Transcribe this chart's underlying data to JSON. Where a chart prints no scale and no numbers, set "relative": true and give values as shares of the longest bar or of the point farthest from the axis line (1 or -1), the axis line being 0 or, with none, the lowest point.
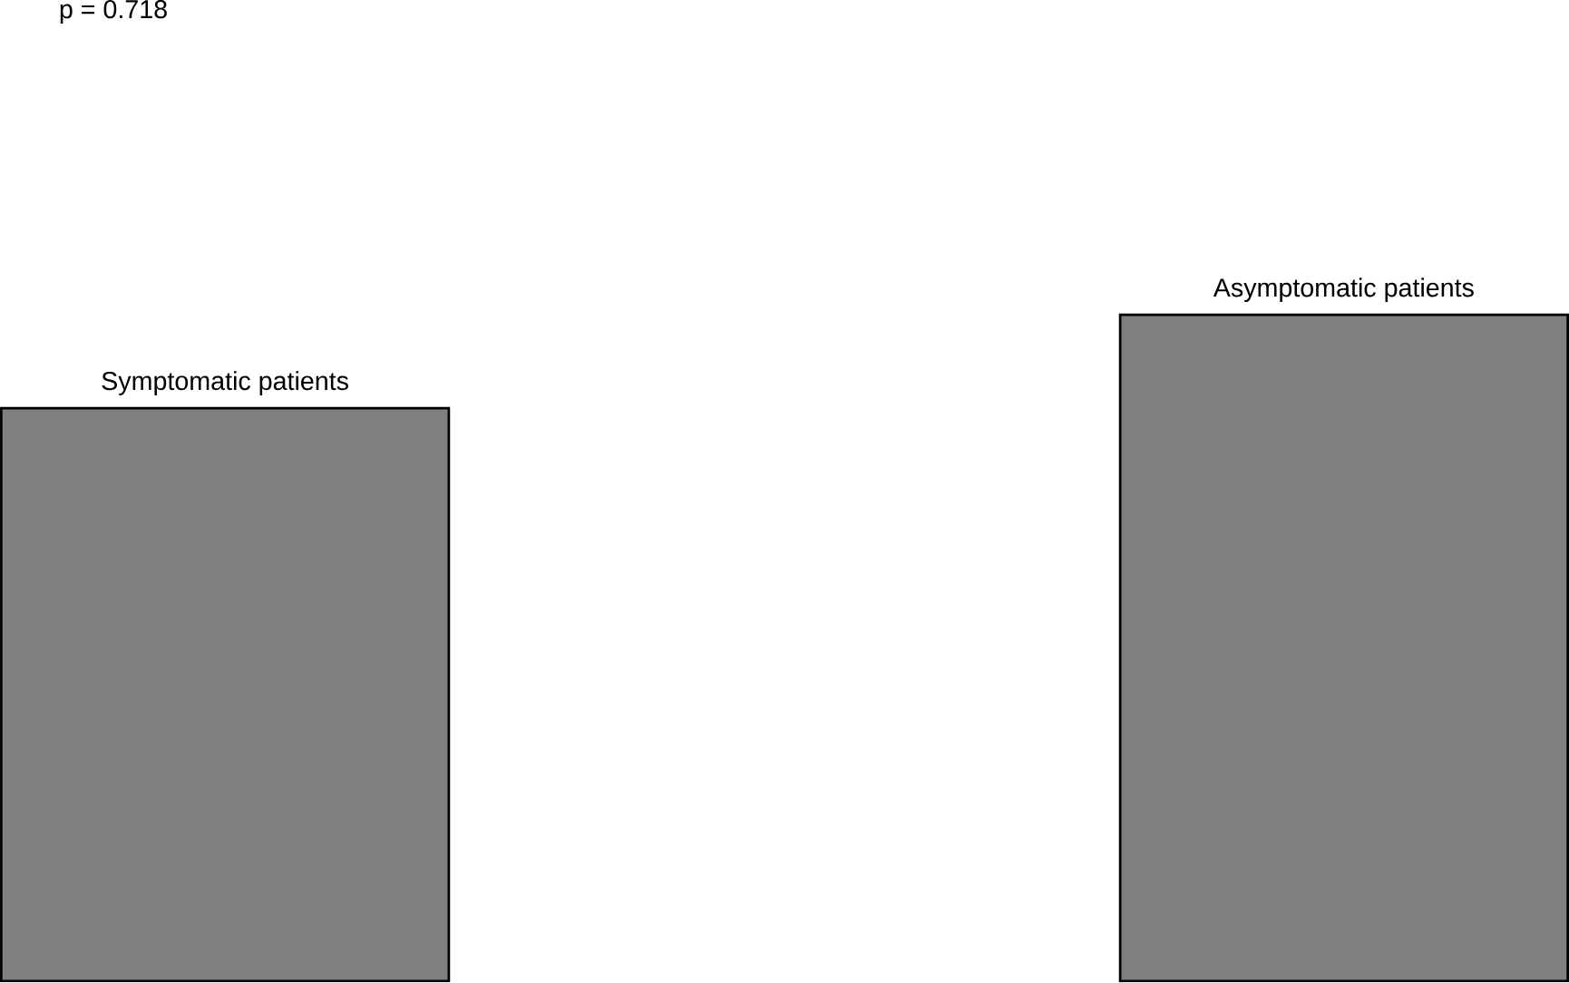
{
  "chart_data": {
    "type": "bar",
    "relative": true,
    "categories": [
      "Symptomatic patients",
      "Asymptomatic patients"
    ],
    "values": [
      0.86,
      1
    ],
    "color": "#808080",
    "annotations": [
      "p = 0.718"
    ]
  }
}
